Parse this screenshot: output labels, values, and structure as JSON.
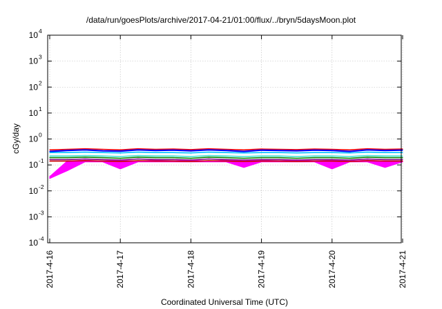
{
  "chart_data": {
    "type": "line",
    "title": "/data/run/goesPlots/archive/2017-04-21/01:00/flux/../bryn/5daysMoon.plot",
    "xlabel": "Coordinated Universal Time (UTC)",
    "ylabel": "cGy/day",
    "yscale": "log",
    "ylim": [
      0.0001,
      10000
    ],
    "xlim": [
      "2017-04-16",
      "2017-04-21 01:00"
    ],
    "x_ticks": [
      "2017-4-16",
      "2017-4-17",
      "2017-4-18",
      "2017-4-19",
      "2017-4-20",
      "2017-4-21"
    ],
    "y_ticks": [
      {
        "base": "10",
        "exp": "-4",
        "value": 0.0001
      },
      {
        "base": "10",
        "exp": "-3",
        "value": 0.001
      },
      {
        "base": "10",
        "exp": "-2",
        "value": 0.01
      },
      {
        "base": "10",
        "exp": "-1",
        "value": 0.1
      },
      {
        "base": "10",
        "exp": "0",
        "value": 1
      },
      {
        "base": "10",
        "exp": "1",
        "value": 10
      },
      {
        "base": "10",
        "exp": "2",
        "value": 100
      },
      {
        "base": "10",
        "exp": "3",
        "value": 1000
      },
      {
        "base": "10",
        "exp": "4",
        "value": 10000
      }
    ],
    "grid": true,
    "x_hours": [
      0,
      6,
      12,
      18,
      24,
      30,
      36,
      42,
      48,
      54,
      60,
      66,
      72,
      78,
      84,
      90,
      96,
      102,
      108,
      114,
      120
    ],
    "series": [
      {
        "color": "#ff00ff",
        "style": "filled-to-min",
        "values": [
          0.035,
          0.14,
          0.15,
          0.14,
          0.15,
          0.14,
          0.15,
          0.14,
          0.15,
          0.14,
          0.15,
          0.14,
          0.15,
          0.14,
          0.15,
          0.14,
          0.15,
          0.14,
          0.15,
          0.14,
          0.14
        ],
        "min_values": [
          0.03,
          0.06,
          0.13,
          0.13,
          0.07,
          0.13,
          0.13,
          0.13,
          0.13,
          0.13,
          0.13,
          0.08,
          0.13,
          0.13,
          0.13,
          0.13,
          0.07,
          0.13,
          0.13,
          0.08,
          0.13
        ]
      },
      {
        "color": "#ff0000",
        "values": [
          0.38,
          0.4,
          0.42,
          0.4,
          0.38,
          0.42,
          0.4,
          0.41,
          0.39,
          0.42,
          0.4,
          0.38,
          0.41,
          0.4,
          0.39,
          0.41,
          0.4,
          0.38,
          0.42,
          0.4,
          0.41
        ]
      },
      {
        "color": "#0000ff",
        "values": [
          0.33,
          0.36,
          0.38,
          0.35,
          0.34,
          0.38,
          0.36,
          0.37,
          0.35,
          0.38,
          0.36,
          0.33,
          0.37,
          0.36,
          0.35,
          0.37,
          0.36,
          0.33,
          0.38,
          0.36,
          0.37
        ]
      },
      {
        "color": "#00bfff",
        "values": [
          0.3,
          0.3,
          0.31,
          0.3,
          0.29,
          0.31,
          0.3,
          0.3,
          0.29,
          0.31,
          0.3,
          0.29,
          0.3,
          0.3,
          0.29,
          0.3,
          0.3,
          0.29,
          0.31,
          0.3,
          0.3
        ]
      },
      {
        "color": "#40e0d0",
        "values": [
          0.22,
          0.22,
          0.23,
          0.22,
          0.21,
          0.23,
          0.22,
          0.22,
          0.21,
          0.23,
          0.22,
          0.21,
          0.22,
          0.22,
          0.21,
          0.22,
          0.22,
          0.21,
          0.23,
          0.22,
          0.22
        ]
      },
      {
        "color": "#008000",
        "values": [
          0.19,
          0.19,
          0.2,
          0.19,
          0.18,
          0.2,
          0.19,
          0.19,
          0.18,
          0.2,
          0.19,
          0.18,
          0.19,
          0.19,
          0.18,
          0.19,
          0.19,
          0.18,
          0.2,
          0.19,
          0.19
        ]
      },
      {
        "color": "#800080",
        "values": [
          0.16,
          0.16,
          0.17,
          0.16,
          0.155,
          0.17,
          0.16,
          0.16,
          0.155,
          0.17,
          0.16,
          0.155,
          0.16,
          0.16,
          0.155,
          0.16,
          0.16,
          0.155,
          0.17,
          0.16,
          0.16
        ]
      },
      {
        "color": "#cc0000",
        "values": [
          0.14,
          0.14,
          0.145,
          0.14,
          0.135,
          0.145,
          0.14,
          0.14,
          0.135,
          0.145,
          0.14,
          0.135,
          0.14,
          0.14,
          0.135,
          0.14,
          0.14,
          0.135,
          0.145,
          0.14,
          0.14
        ]
      }
    ]
  }
}
